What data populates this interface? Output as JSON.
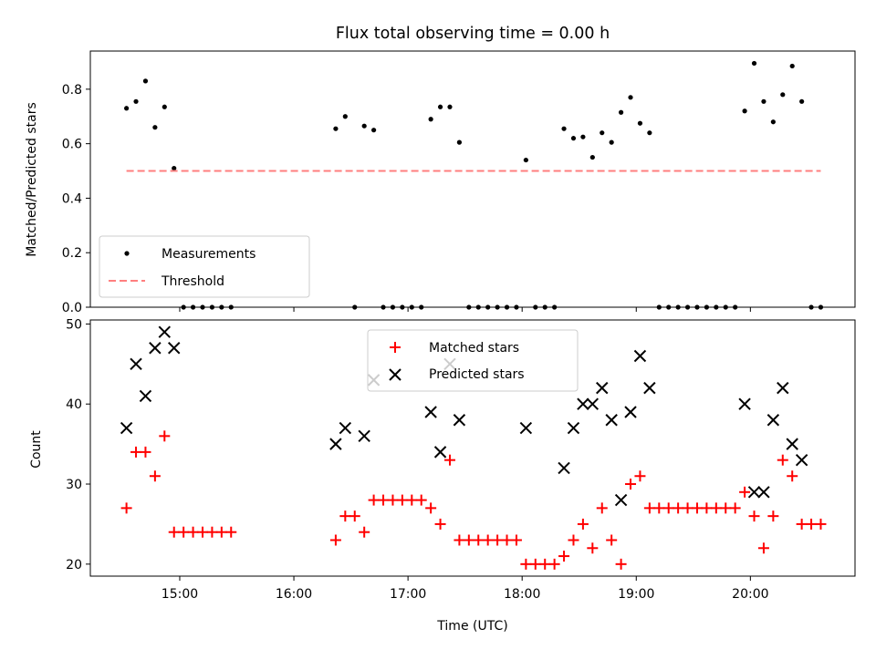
{
  "chart_data": [
    {
      "type": "scatter",
      "title": "Flux total observing time = 0.00 h",
      "xlabel": "",
      "ylabel": "Matched/Predicted stars",
      "ylim": [
        0.0,
        0.94
      ],
      "y_ticks": [
        "0.0",
        "0.2",
        "0.4",
        "0.6",
        "0.8"
      ],
      "legend": {
        "placement": "lower-left",
        "entries": [
          "Measurements",
          "Threshold"
        ]
      },
      "series": [
        {
          "name": "Measurements",
          "marker": "dot",
          "color": "#000000",
          "points": [
            [
              "14:32",
              0.73
            ],
            [
              "14:37",
              0.755
            ],
            [
              "14:42",
              0.83
            ],
            [
              "14:47",
              0.66
            ],
            [
              "14:52",
              0.735
            ],
            [
              "14:57",
              0.51
            ],
            [
              "15:02",
              0.0
            ],
            [
              "15:07",
              0.0
            ],
            [
              "15:12",
              0.0
            ],
            [
              "15:17",
              0.0
            ],
            [
              "15:22",
              0.0
            ],
            [
              "15:27",
              0.0
            ],
            [
              "16:22",
              0.655
            ],
            [
              "16:27",
              0.7
            ],
            [
              "16:32",
              0.0
            ],
            [
              "16:37",
              0.665
            ],
            [
              "16:42",
              0.65
            ],
            [
              "16:47",
              0.0
            ],
            [
              "16:52",
              0.0
            ],
            [
              "16:57",
              0.0
            ],
            [
              "17:02",
              0.0
            ],
            [
              "17:07",
              0.0
            ],
            [
              "17:12",
              0.69
            ],
            [
              "17:17",
              0.735
            ],
            [
              "17:22",
              0.735
            ],
            [
              "17:27",
              0.605
            ],
            [
              "17:32",
              0.0
            ],
            [
              "17:37",
              0.0
            ],
            [
              "17:42",
              0.0
            ],
            [
              "17:47",
              0.0
            ],
            [
              "17:52",
              0.0
            ],
            [
              "17:57",
              0.0
            ],
            [
              "18:02",
              0.54
            ],
            [
              "18:07",
              0.0
            ],
            [
              "18:12",
              0.0
            ],
            [
              "18:17",
              0.0
            ],
            [
              "18:22",
              0.655
            ],
            [
              "18:27",
              0.62
            ],
            [
              "18:32",
              0.625
            ],
            [
              "18:37",
              0.55
            ],
            [
              "18:42",
              0.64
            ],
            [
              "18:47",
              0.605
            ],
            [
              "18:52",
              0.715
            ],
            [
              "18:57",
              0.77
            ],
            [
              "19:02",
              0.675
            ],
            [
              "19:07",
              0.64
            ],
            [
              "19:12",
              0.0
            ],
            [
              "19:17",
              0.0
            ],
            [
              "19:22",
              0.0
            ],
            [
              "19:27",
              0.0
            ],
            [
              "19:32",
              0.0
            ],
            [
              "19:37",
              0.0
            ],
            [
              "19:42",
              0.0
            ],
            [
              "19:47",
              0.0
            ],
            [
              "19:52",
              0.0
            ],
            [
              "19:57",
              0.72
            ],
            [
              "20:02",
              0.895
            ],
            [
              "20:07",
              0.755
            ],
            [
              "20:12",
              0.68
            ],
            [
              "20:17",
              0.78
            ],
            [
              "20:22",
              0.885
            ],
            [
              "20:27",
              0.755
            ],
            [
              "20:32",
              0.0
            ],
            [
              "20:37",
              0.0
            ]
          ]
        },
        {
          "name": "Threshold",
          "marker": "dashed-line",
          "color": "#ff7f7f",
          "points": [
            [
              "14:32",
              0.5
            ],
            [
              "20:37",
              0.5
            ]
          ]
        }
      ]
    },
    {
      "type": "scatter",
      "title": "",
      "xlabel": "Time (UTC)",
      "ylabel": "Count",
      "ylim": [
        18.5,
        50.5
      ],
      "y_ticks": [
        "20",
        "30",
        "40",
        "50"
      ],
      "x_ticks": [
        "15:00",
        "16:00",
        "17:00",
        "18:00",
        "19:00",
        "20:00"
      ],
      "xlim": [
        "14:13",
        "20:55"
      ],
      "legend": {
        "placement": "upper-center",
        "entries": [
          "Matched stars",
          "Predicted stars"
        ]
      },
      "series": [
        {
          "name": "Matched stars",
          "marker": "plus",
          "color": "#ff0000",
          "points": [
            [
              "14:32",
              27
            ],
            [
              "14:37",
              34
            ],
            [
              "14:42",
              34
            ],
            [
              "14:47",
              31
            ],
            [
              "14:52",
              36
            ],
            [
              "14:57",
              24
            ],
            [
              "15:02",
              24
            ],
            [
              "15:07",
              24
            ],
            [
              "15:12",
              24
            ],
            [
              "15:17",
              24
            ],
            [
              "15:22",
              24
            ],
            [
              "15:27",
              24
            ],
            [
              "16:22",
              23
            ],
            [
              "16:27",
              26
            ],
            [
              "16:32",
              26
            ],
            [
              "16:37",
              24
            ],
            [
              "16:42",
              28
            ],
            [
              "16:47",
              28
            ],
            [
              "16:52",
              28
            ],
            [
              "16:57",
              28
            ],
            [
              "17:02",
              28
            ],
            [
              "17:07",
              28
            ],
            [
              "17:12",
              27
            ],
            [
              "17:17",
              25
            ],
            [
              "17:22",
              33
            ],
            [
              "17:27",
              23
            ],
            [
              "17:32",
              23
            ],
            [
              "17:37",
              23
            ],
            [
              "17:42",
              23
            ],
            [
              "17:47",
              23
            ],
            [
              "17:52",
              23
            ],
            [
              "17:57",
              23
            ],
            [
              "18:02",
              20
            ],
            [
              "18:07",
              20
            ],
            [
              "18:12",
              20
            ],
            [
              "18:17",
              20
            ],
            [
              "18:22",
              21
            ],
            [
              "18:27",
              23
            ],
            [
              "18:32",
              25
            ],
            [
              "18:37",
              22
            ],
            [
              "18:42",
              27
            ],
            [
              "18:47",
              23
            ],
            [
              "18:52",
              20
            ],
            [
              "18:57",
              30
            ],
            [
              "19:02",
              31
            ],
            [
              "19:07",
              27
            ],
            [
              "19:12",
              27
            ],
            [
              "19:17",
              27
            ],
            [
              "19:22",
              27
            ],
            [
              "19:27",
              27
            ],
            [
              "19:32",
              27
            ],
            [
              "19:37",
              27
            ],
            [
              "19:42",
              27
            ],
            [
              "19:47",
              27
            ],
            [
              "19:52",
              27
            ],
            [
              "19:57",
              29
            ],
            [
              "20:02",
              26
            ],
            [
              "20:07",
              22
            ],
            [
              "20:12",
              26
            ],
            [
              "20:17",
              33
            ],
            [
              "20:22",
              31
            ],
            [
              "20:27",
              25
            ],
            [
              "20:32",
              25
            ],
            [
              "20:37",
              25
            ]
          ]
        },
        {
          "name": "Predicted stars",
          "marker": "x",
          "color": "#000000",
          "points": [
            [
              "14:32",
              37
            ],
            [
              "14:37",
              45
            ],
            [
              "14:42",
              41
            ],
            [
              "14:47",
              47
            ],
            [
              "14:52",
              49
            ],
            [
              "14:57",
              47
            ],
            [
              "16:22",
              35
            ],
            [
              "16:27",
              37
            ],
            [
              "16:37",
              36
            ],
            [
              "16:42",
              43
            ],
            [
              "17:12",
              39
            ],
            [
              "17:17",
              34
            ],
            [
              "17:22",
              45
            ],
            [
              "17:27",
              38
            ],
            [
              "18:02",
              37
            ],
            [
              "18:22",
              32
            ],
            [
              "18:27",
              37
            ],
            [
              "18:32",
              40
            ],
            [
              "18:37",
              40
            ],
            [
              "18:42",
              42
            ],
            [
              "18:47",
              38
            ],
            [
              "18:52",
              28
            ],
            [
              "18:57",
              39
            ],
            [
              "19:02",
              46
            ],
            [
              "19:07",
              42
            ],
            [
              "19:57",
              40
            ],
            [
              "20:02",
              29
            ],
            [
              "20:07",
              29
            ],
            [
              "20:12",
              38
            ],
            [
              "20:17",
              42
            ],
            [
              "20:22",
              35
            ],
            [
              "20:27",
              33
            ]
          ]
        }
      ]
    }
  ]
}
